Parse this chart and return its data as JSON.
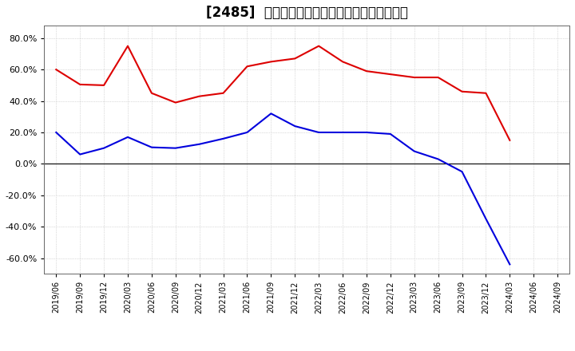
{
  "title": "[2485]  有利子負債キャッシュフロー比率の推移",
  "x_labels": [
    "2019/06",
    "2019/09",
    "2019/12",
    "2020/03",
    "2020/06",
    "2020/09",
    "2020/12",
    "2021/03",
    "2021/06",
    "2021/09",
    "2021/12",
    "2022/03",
    "2022/06",
    "2022/09",
    "2022/12",
    "2023/03",
    "2023/06",
    "2023/09",
    "2023/12",
    "2024/03",
    "2024/06",
    "2024/09"
  ],
  "red_values": [
    60.0,
    50.5,
    50.0,
    75.0,
    45.0,
    39.0,
    43.0,
    45.0,
    62.0,
    65.0,
    67.0,
    75.0,
    65.0,
    59.0,
    57.0,
    55.0,
    55.0,
    46.0,
    45.0,
    15.0,
    null,
    null
  ],
  "blue_values": [
    20.0,
    6.0,
    10.0,
    17.0,
    10.5,
    10.0,
    12.5,
    16.0,
    20.0,
    32.0,
    24.0,
    20.0,
    20.0,
    20.0,
    19.0,
    8.0,
    3.0,
    -5.0,
    -35.0,
    -64.0,
    null,
    null
  ],
  "ylim": [
    -70,
    88
  ],
  "yticks": [
    -60.0,
    -40.0,
    -20.0,
    0.0,
    20.0,
    40.0,
    60.0,
    80.0
  ],
  "red_color": "#dd0000",
  "blue_color": "#0000dd",
  "grid_color": "#bbbbbb",
  "background_color": "#ffffff",
  "title_fontsize": 12
}
